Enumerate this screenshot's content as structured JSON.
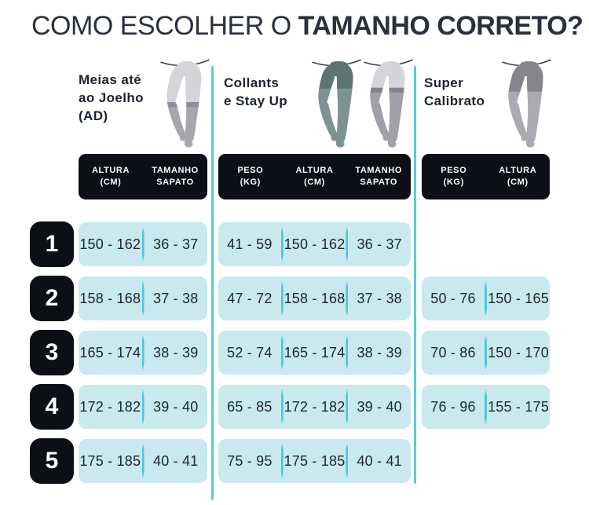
{
  "title": {
    "regular": "COMO ESCOLHER O ",
    "bold": "TAMANHO CORRETO?"
  },
  "groups": [
    {
      "name": [
        "Meias até",
        "ao Joelho",
        "(AD)"
      ],
      "icon": "knee-high-stockings-legs-icon",
      "columns": [
        [
          "ALTURA",
          "(CM)"
        ],
        [
          "TAMANHO",
          "SAPATO"
        ]
      ]
    },
    {
      "name": [
        "Collants",
        "e Stay Up"
      ],
      "icons": [
        "tights-legs-icon",
        "stay-up-stockings-legs-icon"
      ],
      "columns": [
        [
          "PESO",
          "(KG)"
        ],
        [
          "ALTURA",
          "(CM)"
        ],
        [
          "TAMANHO",
          "SAPATO"
        ]
      ]
    },
    {
      "name": [
        "Super",
        "Calibrato"
      ],
      "icon": "shaping-tights-legs-icon",
      "columns": [
        [
          "PESO",
          "(KG)"
        ],
        [
          "ALTURA",
          "(CM)"
        ]
      ]
    }
  ],
  "rows": [
    {
      "size": "1",
      "g1": [
        "150 - 162",
        "36 - 37"
      ],
      "g2": [
        "41 - 59",
        "150 - 162",
        "36 - 37"
      ],
      "g3": null
    },
    {
      "size": "2",
      "g1": [
        "158 - 168",
        "37 - 38"
      ],
      "g2": [
        "47 - 72",
        "158 - 168",
        "37 - 38"
      ],
      "g3": [
        "50 - 76",
        "150 - 165"
      ]
    },
    {
      "size": "3",
      "g1": [
        "165 - 174",
        "38 - 39"
      ],
      "g2": [
        "52 - 74",
        "165 - 174",
        "38 - 39"
      ],
      "g3": [
        "70 - 86",
        "150 - 170"
      ]
    },
    {
      "size": "4",
      "g1": [
        "172 - 182",
        "39 - 40"
      ],
      "g2": [
        "65 - 85",
        "172 - 182",
        "39 - 40"
      ],
      "g3": [
        "76 - 96",
        "155 - 175"
      ]
    },
    {
      "size": "5",
      "g1": [
        "175 - 185",
        "40 - 41"
      ],
      "g2": [
        "75 - 95",
        "175 - 185",
        "40 - 41"
      ],
      "g3": null
    }
  ],
  "colors": {
    "title_text": "#2a303d",
    "black_box": "#0c0f15",
    "cell_background": "#c9e9ee",
    "cell_text": "#20262f",
    "teal_divider": "#4dc8d5",
    "group_divider_line": "#56cdd8",
    "illustration": {
      "skin": "#d4d5d8",
      "knee_sock": "#a6a7ad",
      "sock_band": "#8e8f96",
      "tights_teal": "#7d9392",
      "tights_panty": "#5d7473",
      "stayup_hose": "#a0a1a7",
      "stayup_band": "#82838a",
      "super_tights": "#aaabb0",
      "super_panty": "#85868c",
      "hem_line": "#3e434e"
    }
  }
}
